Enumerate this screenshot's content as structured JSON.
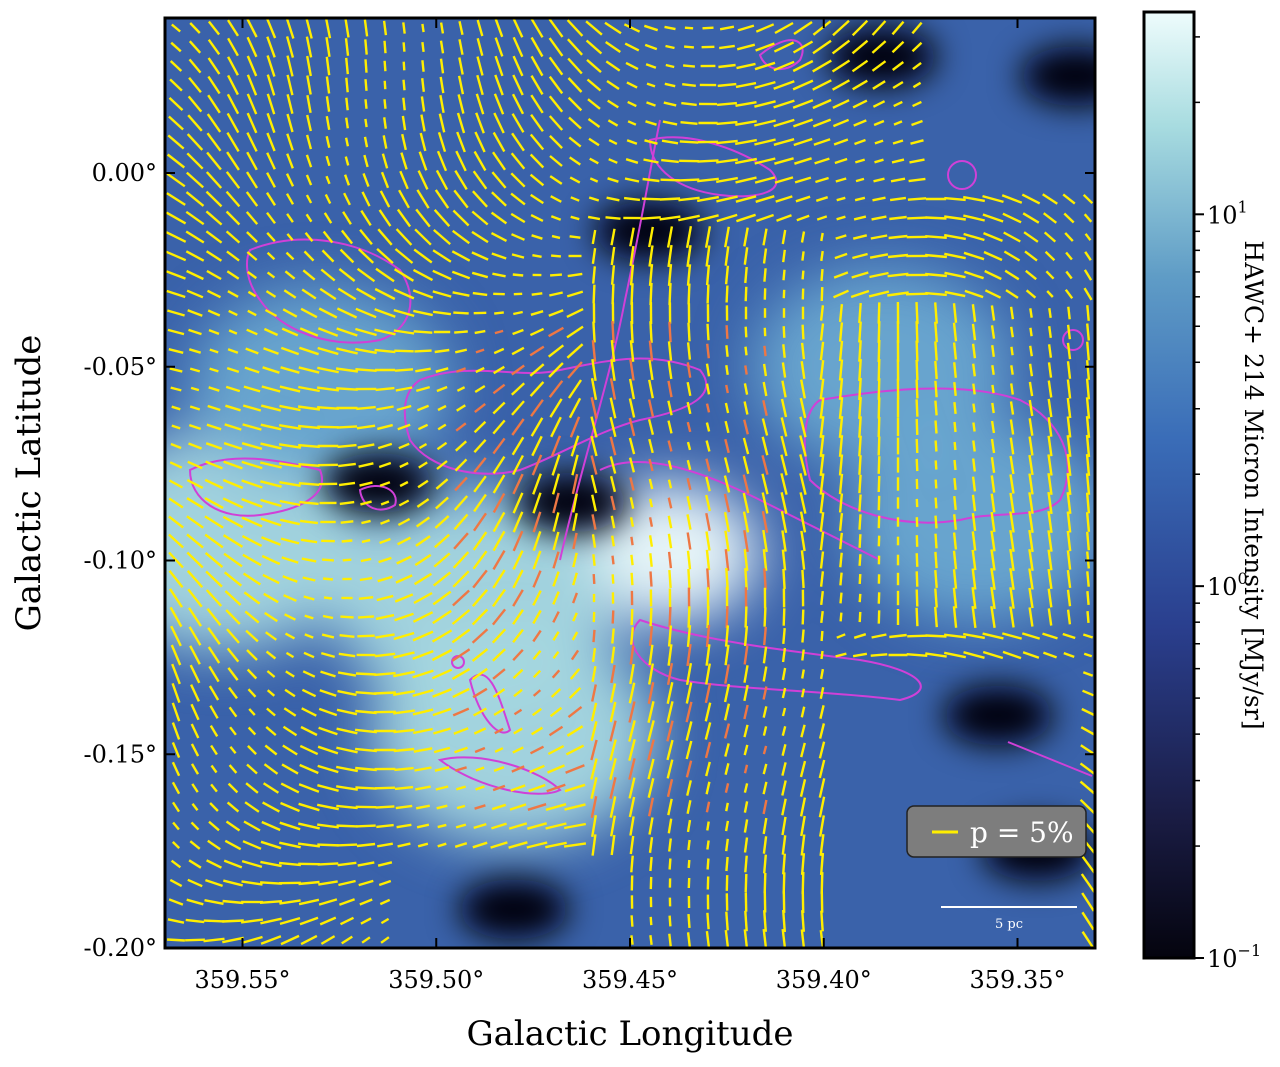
{
  "chart_data": {
    "type": "heatmap",
    "title": "",
    "xlabel": "Galactic Longitude",
    "ylabel": "Galactic Latitude",
    "x_axis": {
      "range": [
        359.57,
        359.33
      ],
      "direction": "decreasing",
      "unit": "deg",
      "ticks": [
        359.55,
        359.5,
        359.45,
        359.4,
        359.35
      ],
      "tick_labels": [
        "359.55°",
        "359.50°",
        "359.45°",
        "359.40°",
        "359.35°"
      ]
    },
    "y_axis": {
      "range": [
        -0.2,
        0.04
      ],
      "unit": "deg",
      "ticks": [
        0.0,
        -0.05,
        -0.1,
        -0.15,
        -0.2
      ],
      "tick_labels": [
        "0.00°",
        "-0.05°",
        "-0.10°",
        "-0.15°",
        "-0.20°"
      ]
    },
    "colorbar": {
      "label": "HAWC+ 214 Micron Intensity [MJy/sr]",
      "scale": "log",
      "range": [
        0.1,
        35
      ],
      "ticks": [
        0.1,
        1,
        10
      ],
      "tick_labels": [
        "10",
        "10",
        "10"
      ],
      "tick_exponents": [
        "−1",
        "0",
        "1"
      ],
      "colormap": [
        "#04040e",
        "#1e2250",
        "#2c4aa0",
        "#3e78c0",
        "#6fa8d0",
        "#b8e0e6",
        "#eefcfc"
      ]
    },
    "bright_regions": [
      {
        "l": 359.44,
        "b": -0.098,
        "level": "peak"
      },
      {
        "l": 359.49,
        "b": -0.11,
        "level": "high"
      },
      {
        "l": 359.555,
        "b": -0.095,
        "level": "high"
      },
      {
        "l": 359.48,
        "b": -0.145,
        "level": "high"
      },
      {
        "l": 359.53,
        "b": -0.055,
        "level": "medium"
      },
      {
        "l": 359.385,
        "b": -0.05,
        "level": "medium"
      },
      {
        "l": 359.36,
        "b": -0.09,
        "level": "medium"
      }
    ],
    "dark_regions": [
      {
        "l": 359.515,
        "b": -0.08
      },
      {
        "l": 359.465,
        "b": -0.085
      },
      {
        "l": 359.445,
        "b": -0.015
      },
      {
        "l": 359.48,
        "b": -0.19
      },
      {
        "l": 359.355,
        "b": -0.14
      },
      {
        "l": 359.335,
        "b": 0.025
      },
      {
        "l": 359.385,
        "b": 0.03
      },
      {
        "l": 359.345,
        "b": -0.175
      }
    ],
    "vector_overlay": {
      "description_colors": {
        "default": "#ffee00",
        "low_sig": "#ee7744"
      }
    },
    "contour_color": "#d040d8",
    "legend": {
      "entries": [
        {
          "label": "p = 5%",
          "color": "#ffee00"
        }
      ],
      "placement": "bottom-right"
    },
    "scale_bar": {
      "label": "5 pc"
    }
  }
}
